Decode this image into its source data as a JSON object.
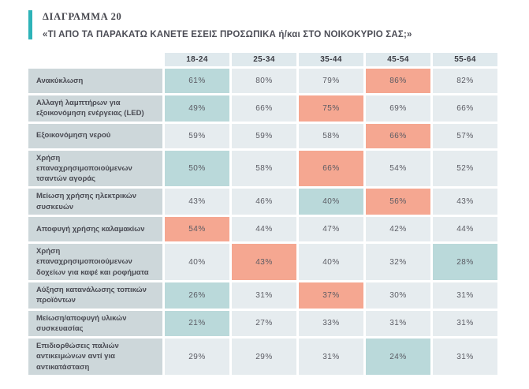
{
  "header": {
    "diagram_label": "ΔΙΑΓΡΑΜΜΑ 20",
    "question": "«ΤΙ ΑΠΟ ΤΑ ΠΑΡΑΚΑΤΩ ΚΑΝΕΤΕ ΕΣΕΙΣ ΠΡΟΣΩΠΙΚΑ ή/και ΣΤΟ ΝΟΙΚΟΚΥΡΙΟ ΣΑΣ;»"
  },
  "colors": {
    "accent_bar": "#2eb3b8",
    "header_cell_bg": "#dfe9ed",
    "row_label_bg": "#cdd7da",
    "cell_default_bg": "#e6ecef",
    "cell_lowest_bg": "#bad9da",
    "cell_highest_bg": "#f5a791",
    "cell_text": "#5a5b63"
  },
  "chart_data": {
    "type": "heatmap",
    "title": "«ΤΙ ΑΠΟ ΤΑ ΠΑΡΑΚΑΤΩ ΚΑΝΕΤΕ ΕΣΕΙΣ ΠΡΟΣΩΠΙΚΑ ή/και ΣΤΟ ΝΟΙΚΟΚΥΡΙΟ ΣΑΣ;»",
    "unit": "%",
    "columns": [
      "18-24",
      "25-34",
      "35-44",
      "45-54",
      "55-64"
    ],
    "highlight_legend": {
      "lo": "lowest value in row (teal)",
      "hi": "highest value in row (salmon)"
    },
    "rows": [
      {
        "label": "Ανακύκλωση",
        "values": [
          61,
          80,
          79,
          86,
          82
        ],
        "highlights": [
          "lo",
          null,
          null,
          "hi",
          null
        ]
      },
      {
        "label": "Αλλαγή λαμπτήρων για εξοικονόμηση ενέργειας (LED)",
        "values": [
          49,
          66,
          75,
          69,
          66
        ],
        "highlights": [
          "lo",
          null,
          "hi",
          null,
          null
        ]
      },
      {
        "label": "Εξοικονόμηση νερού",
        "values": [
          59,
          59,
          58,
          66,
          57
        ],
        "highlights": [
          null,
          null,
          null,
          "hi",
          null
        ]
      },
      {
        "label": "Χρήση επαναχρησιμοποιούμενων τσαντών αγοράς",
        "values": [
          50,
          58,
          66,
          54,
          52
        ],
        "highlights": [
          "lo",
          null,
          "hi",
          null,
          null
        ]
      },
      {
        "label": "Μείωση χρήσης ηλεκτρικών συσκευών",
        "values": [
          43,
          46,
          40,
          56,
          43
        ],
        "highlights": [
          null,
          null,
          "lo",
          "hi",
          null
        ]
      },
      {
        "label": "Αποφυγή χρήσης καλαμακίων",
        "values": [
          54,
          44,
          47,
          42,
          44
        ],
        "highlights": [
          "hi",
          null,
          null,
          null,
          null
        ]
      },
      {
        "label": "Χρήση επαναχρησιμοποιούμενων δοχείων για καφέ και ροφήματα",
        "values": [
          40,
          43,
          40,
          32,
          28
        ],
        "highlights": [
          null,
          "hi",
          null,
          null,
          "lo"
        ]
      },
      {
        "label": "Αύξηση κατανάλωσης τοπικών προϊόντων",
        "values": [
          26,
          31,
          37,
          30,
          31
        ],
        "highlights": [
          "lo",
          null,
          "hi",
          null,
          null
        ]
      },
      {
        "label": "Μείωση/αποφυγή υλικών συσκευασίας",
        "values": [
          21,
          27,
          33,
          31,
          31
        ],
        "highlights": [
          "lo",
          null,
          null,
          null,
          null
        ]
      },
      {
        "label": "Επιδιορθώσεις παλιών αντικειμώνων αντί για αντικατάσταση",
        "values": [
          29,
          29,
          31,
          24,
          31
        ],
        "highlights": [
          null,
          null,
          null,
          "lo",
          null
        ]
      }
    ]
  }
}
